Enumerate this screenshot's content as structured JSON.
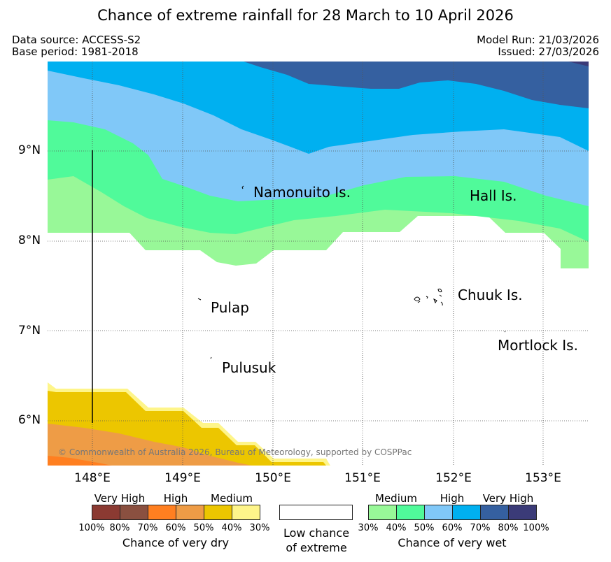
{
  "title": "Chance of extreme rainfall for 28 March to 10 April 2026",
  "meta": {
    "data_source": "Data source: ACCESS-S2",
    "base_period": "Base period: 1981-2018",
    "model_run": "Model Run: 21/03/2026",
    "issued": "Issued: 27/03/2026"
  },
  "map": {
    "latitude_labels": [
      "9°N",
      "8°N",
      "7°N",
      "6°N"
    ],
    "longitude_labels": [
      "148°E",
      "149°E",
      "150°E",
      "151°E",
      "152°E",
      "153°E"
    ],
    "places": {
      "namonuito": "Namonuito Is.",
      "hall": "Hall Is.",
      "pulap": "Pulap",
      "chuuk": "Chuuk Is.",
      "mortlock": "Mortlock Is.",
      "pulusuk": "Pulusuk"
    },
    "copyright": "© Commonwealth of Australia 2026, Bureau of Meteorology, supported by COSPPac",
    "colors": {
      "wet_very_high_80": "#3b3b78",
      "wet_very_high_70": "#3560a0",
      "wet_high_60": "#00b0f0",
      "wet_high_50": "#80c8f8",
      "wet_medium_40": "#50fa9a",
      "wet_medium_30": "#98f898",
      "dry_medium_30": "#fef58a",
      "dry_medium_40": "#ecc600",
      "dry_high_50": "#ee9c46",
      "dry_high_60": "#ff7f20",
      "dry_very_high_70": "#8a5040",
      "dry_very_high_80": "#8b3a32"
    }
  },
  "legend": {
    "dry": {
      "groups": [
        "Very High",
        "High",
        "Medium"
      ],
      "ticks": [
        "100%",
        "80%",
        "70%",
        "60%",
        "50%",
        "40%",
        "30%"
      ],
      "title": "Chance of very dry",
      "colors": [
        "#8b3a32",
        "#8a5040",
        "#ff7f20",
        "#ee9c46",
        "#ecc600",
        "#fef58a"
      ]
    },
    "low": {
      "line1": "Low chance",
      "line2": "of extreme"
    },
    "wet": {
      "groups": [
        "Medium",
        "High",
        "Very High"
      ],
      "ticks": [
        "30%",
        "40%",
        "50%",
        "60%",
        "70%",
        "80%",
        "100%"
      ],
      "title": "Chance of very wet",
      "colors": [
        "#98f898",
        "#50fa9a",
        "#80c8f8",
        "#00b0f0",
        "#3560a0",
        "#3b3b78"
      ]
    }
  }
}
